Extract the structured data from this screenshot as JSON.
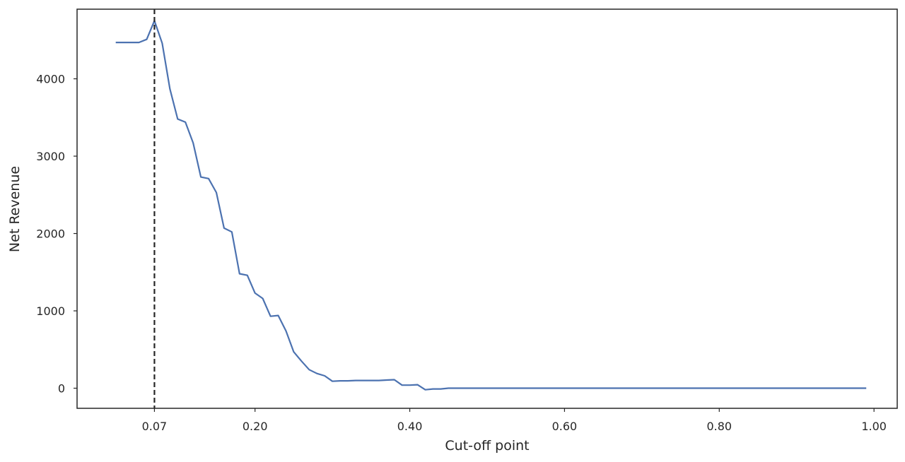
{
  "chart_data": {
    "type": "line",
    "title": "",
    "xlabel": "Cut-off point",
    "ylabel": "Net Revenue",
    "xlim": [
      -0.03,
      1.03
    ],
    "ylim": [
      -260,
      4900
    ],
    "xticks": [
      0.07,
      0.2,
      0.4,
      0.6,
      0.8,
      1.0
    ],
    "xtick_labels": [
      "0.07",
      "0.20",
      "0.40",
      "0.60",
      "0.80",
      "1.00"
    ],
    "yticks": [
      0,
      1000,
      2000,
      3000,
      4000
    ],
    "ytick_labels": [
      "0",
      "1000",
      "2000",
      "3000",
      "4000"
    ],
    "grid": false,
    "vline": {
      "x": 0.07,
      "style": "dashed",
      "color": "#262626"
    },
    "series": [
      {
        "color": "#4c72b0",
        "x": [
          0.02,
          0.03,
          0.04,
          0.05,
          0.06,
          0.07,
          0.08,
          0.09,
          0.1,
          0.11,
          0.12,
          0.13,
          0.14,
          0.15,
          0.16,
          0.17,
          0.18,
          0.19,
          0.2,
          0.21,
          0.22,
          0.23,
          0.24,
          0.25,
          0.26,
          0.27,
          0.28,
          0.29,
          0.3,
          0.31,
          0.32,
          0.33,
          0.34,
          0.35,
          0.36,
          0.37,
          0.38,
          0.39,
          0.4,
          0.41,
          0.42,
          0.43,
          0.44,
          0.45,
          0.5,
          0.6,
          0.7,
          0.8,
          0.9,
          0.99
        ],
        "y": [
          4470,
          4470,
          4470,
          4470,
          4510,
          4750,
          4460,
          3870,
          3480,
          3440,
          3170,
          2730,
          2710,
          2530,
          2070,
          2020,
          1480,
          1460,
          1230,
          1160,
          930,
          940,
          740,
          470,
          350,
          240,
          190,
          160,
          90,
          95,
          95,
          100,
          100,
          100,
          100,
          105,
          110,
          40,
          40,
          45,
          -20,
          -10,
          -10,
          0,
          0,
          0,
          0,
          0,
          0,
          0
        ]
      }
    ]
  }
}
